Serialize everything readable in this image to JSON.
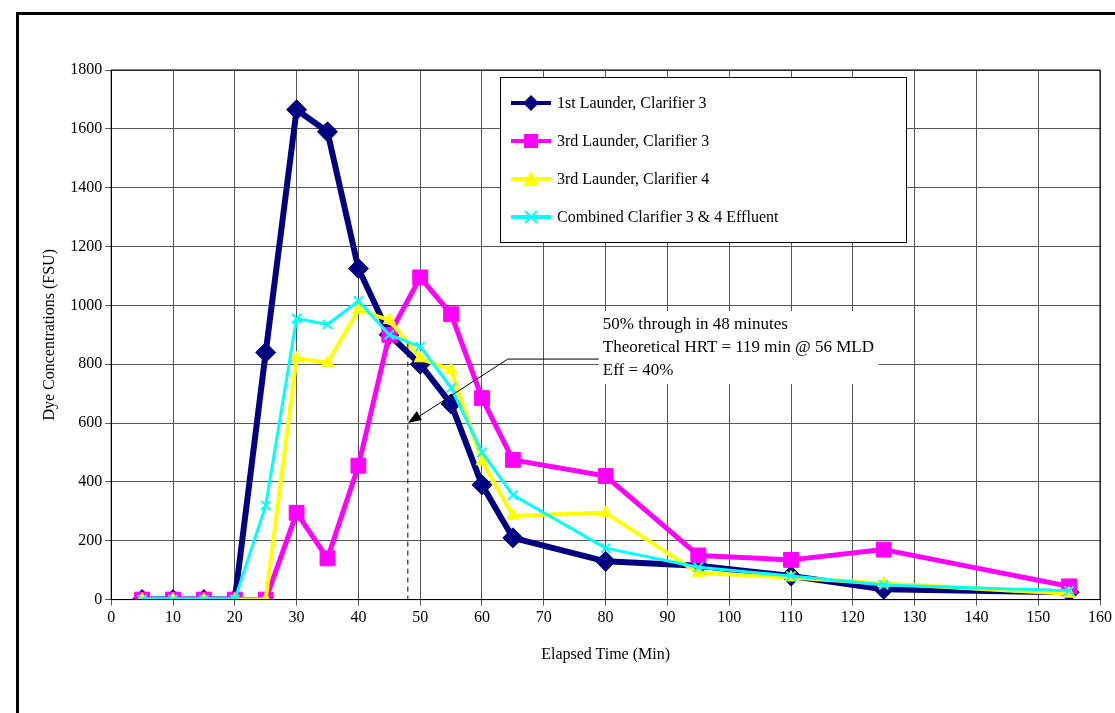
{
  "chart_data": {
    "type": "line",
    "xlabel": "Elapsed Time (Min)",
    "ylabel": "Dye Concentrations (FSU)",
    "x": [
      5,
      10,
      15,
      20,
      25,
      30,
      35,
      40,
      45,
      50,
      55,
      60,
      65,
      80,
      95,
      110,
      125,
      155
    ],
    "series": [
      {
        "name": "1st Launder, Clarifier 3",
        "color": "#000080",
        "marker": "diamond",
        "values": [
          0,
          0,
          0,
          0,
          840,
          1665,
          1590,
          1125,
          900,
          800,
          665,
          390,
          210,
          130,
          115,
          80,
          35,
          25
        ]
      },
      {
        "name": "3rd Launder, Clarifier 3",
        "color": "#ff00ff",
        "marker": "square",
        "values": [
          0,
          0,
          0,
          0,
          0,
          295,
          140,
          455,
          900,
          1095,
          970,
          685,
          475,
          420,
          150,
          135,
          170,
          45
        ]
      },
      {
        "name": "3rd Launder, Clarifier 4",
        "color": "#ffff00",
        "marker": "triangle",
        "values": [
          0,
          0,
          0,
          0,
          0,
          820,
          805,
          985,
          950,
          820,
          780,
          470,
          285,
          295,
          90,
          75,
          55,
          20
        ]
      },
      {
        "name": "Combined Clarifier 3 & 4 Effluent",
        "color": "#00ffff",
        "marker": "cross",
        "values": [
          0,
          0,
          0,
          0,
          320,
          955,
          935,
          1015,
          900,
          860,
          720,
          500,
          355,
          175,
          110,
          80,
          50,
          30
        ]
      }
    ],
    "xlim": [
      0,
      160
    ],
    "xticks": [
      0,
      10,
      20,
      30,
      40,
      50,
      60,
      70,
      80,
      90,
      100,
      110,
      120,
      130,
      140,
      150,
      160
    ],
    "ylim": [
      0,
      1800
    ],
    "yticks": [
      0,
      200,
      400,
      600,
      800,
      1000,
      1200,
      1400,
      1600,
      1800
    ],
    "ref_lines": [
      {
        "axis": "x",
        "value": 48,
        "color": "#000000",
        "line_style": "dashed"
      }
    ],
    "annotations": [
      {
        "text": "50% through in 48 minutes\nTheoretical HRT = 119 min @ 56 MLD\nEff = 40%",
        "x": 48,
        "y": 600
      }
    ],
    "grid": true,
    "legend": "top right",
    "line_style": "solid"
  }
}
